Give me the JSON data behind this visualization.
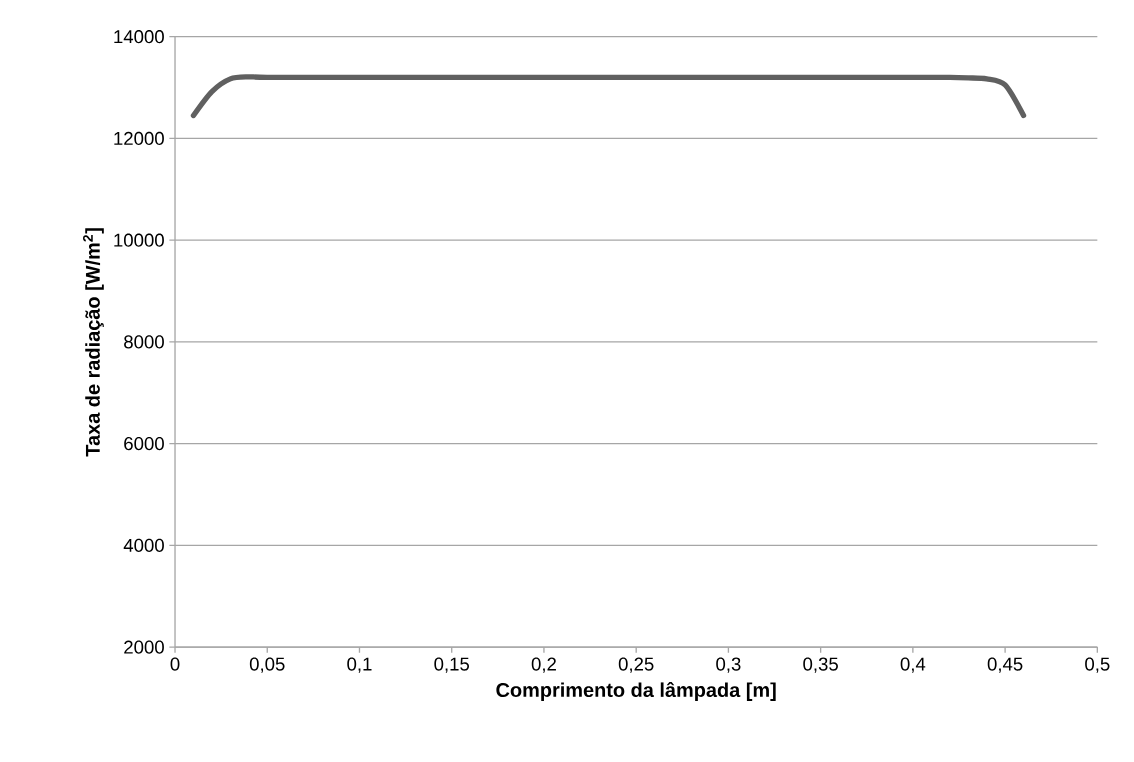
{
  "chart_data": {
    "type": "line",
    "xlabel": "Comprimento da lâmpada [m]",
    "ylabel": "Taxa de radiação [W/m$^{2}$]",
    "x": [
      0.01,
      0.02,
      0.03,
      0.04,
      0.05,
      0.1,
      0.15,
      0.2,
      0.25,
      0.3,
      0.35,
      0.4,
      0.42,
      0.43,
      0.44,
      0.45,
      0.46
    ],
    "series": [
      {
        "color": "#606060",
        "values": [
          12450,
          12920,
          13170,
          13210,
          13200,
          13200,
          13200,
          13200,
          13200,
          13200,
          13200,
          13200,
          13200,
          13190,
          13170,
          13050,
          12450
        ]
      }
    ],
    "xlim": [
      0,
      0.5
    ],
    "ylim": [
      2000,
      14000
    ],
    "xticks": [
      0,
      {
        "value": 0.05,
        "label": "0,05"
      },
      {
        "value": 0.1,
        "label": "0,1"
      },
      {
        "value": 0.15,
        "label": "0,15"
      },
      {
        "value": 0.2,
        "label": "0,2"
      },
      {
        "value": 0.25,
        "label": "0,25"
      },
      {
        "value": 0.3,
        "label": "0,3"
      },
      {
        "value": 0.35,
        "label": "0,35"
      },
      {
        "value": 0.4,
        "label": "0,4"
      },
      {
        "value": 0.45,
        "label": "0,45"
      },
      {
        "value": 0.5,
        "label": "0,5"
      }
    ],
    "yticks": [
      2000,
      4000,
      6000,
      8000,
      10000,
      12000,
      14000
    ],
    "grid": "y",
    "marker": "none",
    "line_style": "solid"
  }
}
